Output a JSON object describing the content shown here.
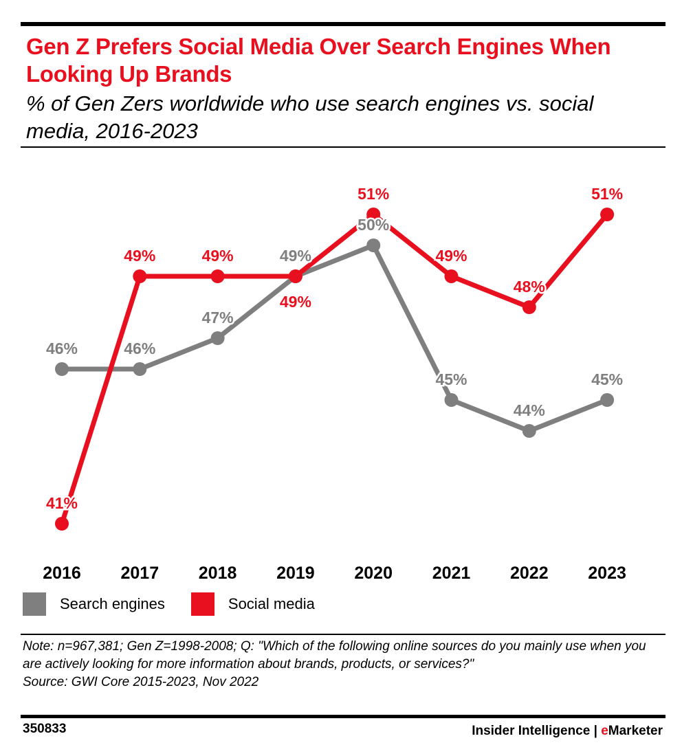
{
  "title": "Gen Z Prefers Social Media Over Search Engines When Looking Up Brands",
  "subtitle": "% of Gen Zers worldwide who use search engines vs. social media, 2016-2023",
  "legend": {
    "search_label": "Search engines",
    "social_label": "Social media"
  },
  "notes": {
    "note": "Note: n=967,381; Gen Z=1998-2008; Q: \"Which of the following online sources do you mainly use when you are actively looking for more information about brands, products, or services?\"",
    "source": "Source: GWI Core 2015-2023, Nov 2022"
  },
  "footer": {
    "id": "350833",
    "brand_main": "Insider Intelligence",
    "brand_sep": "|",
    "brand_accent_first": "e",
    "brand_rest": "Marketer"
  },
  "colors": {
    "search": "#7f7f7f",
    "social": "#e8101e"
  },
  "chart_data": {
    "type": "line",
    "categories": [
      "2016",
      "2017",
      "2018",
      "2019",
      "2020",
      "2021",
      "2022",
      "2023"
    ],
    "series": [
      {
        "name": "Search engines",
        "values": [
          46,
          46,
          47,
          49,
          50,
          45,
          44,
          45
        ],
        "labels": [
          "46%",
          "46%",
          "47%",
          "49%",
          "50%",
          "45%",
          "44%",
          "45%"
        ]
      },
      {
        "name": "Social media",
        "values": [
          41,
          49,
          49,
          49,
          51,
          49,
          48,
          51
        ],
        "labels": [
          "41%",
          "49%",
          "49%",
          "49%",
          "51%",
          "49%",
          "48%",
          "51%"
        ]
      }
    ],
    "ylim": [
      41,
      51
    ],
    "unit": "%",
    "grid": false,
    "legend_position": "bottom-left"
  }
}
